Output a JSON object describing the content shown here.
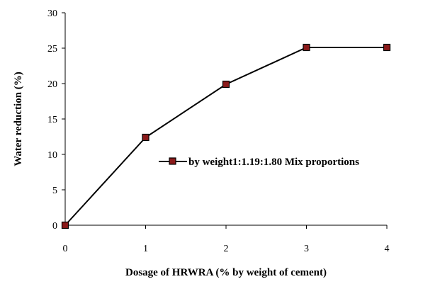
{
  "chart_data": {
    "type": "line",
    "xlabel": "Dosage of HRWRA   (% by weight of cement)",
    "ylabel": "Water reduction (%)",
    "xlim": [
      0,
      4
    ],
    "ylim": [
      0,
      30
    ],
    "x_ticks": [
      "0",
      "1",
      "2",
      "3",
      "4"
    ],
    "y_ticks": [
      "0",
      "5",
      "10",
      "15",
      "20",
      "25",
      "30"
    ],
    "grid": false,
    "legend_position": "right",
    "series": [
      {
        "name": "by weight1:1.19:1.80 Mix proportions",
        "x": [
          0,
          1,
          2,
          3,
          4
        ],
        "y": [
          0,
          12.4,
          19.9,
          25.1,
          25.1
        ],
        "line_color": "#000000",
        "marker": "square",
        "marker_fill": "#8b1a1a"
      }
    ]
  }
}
